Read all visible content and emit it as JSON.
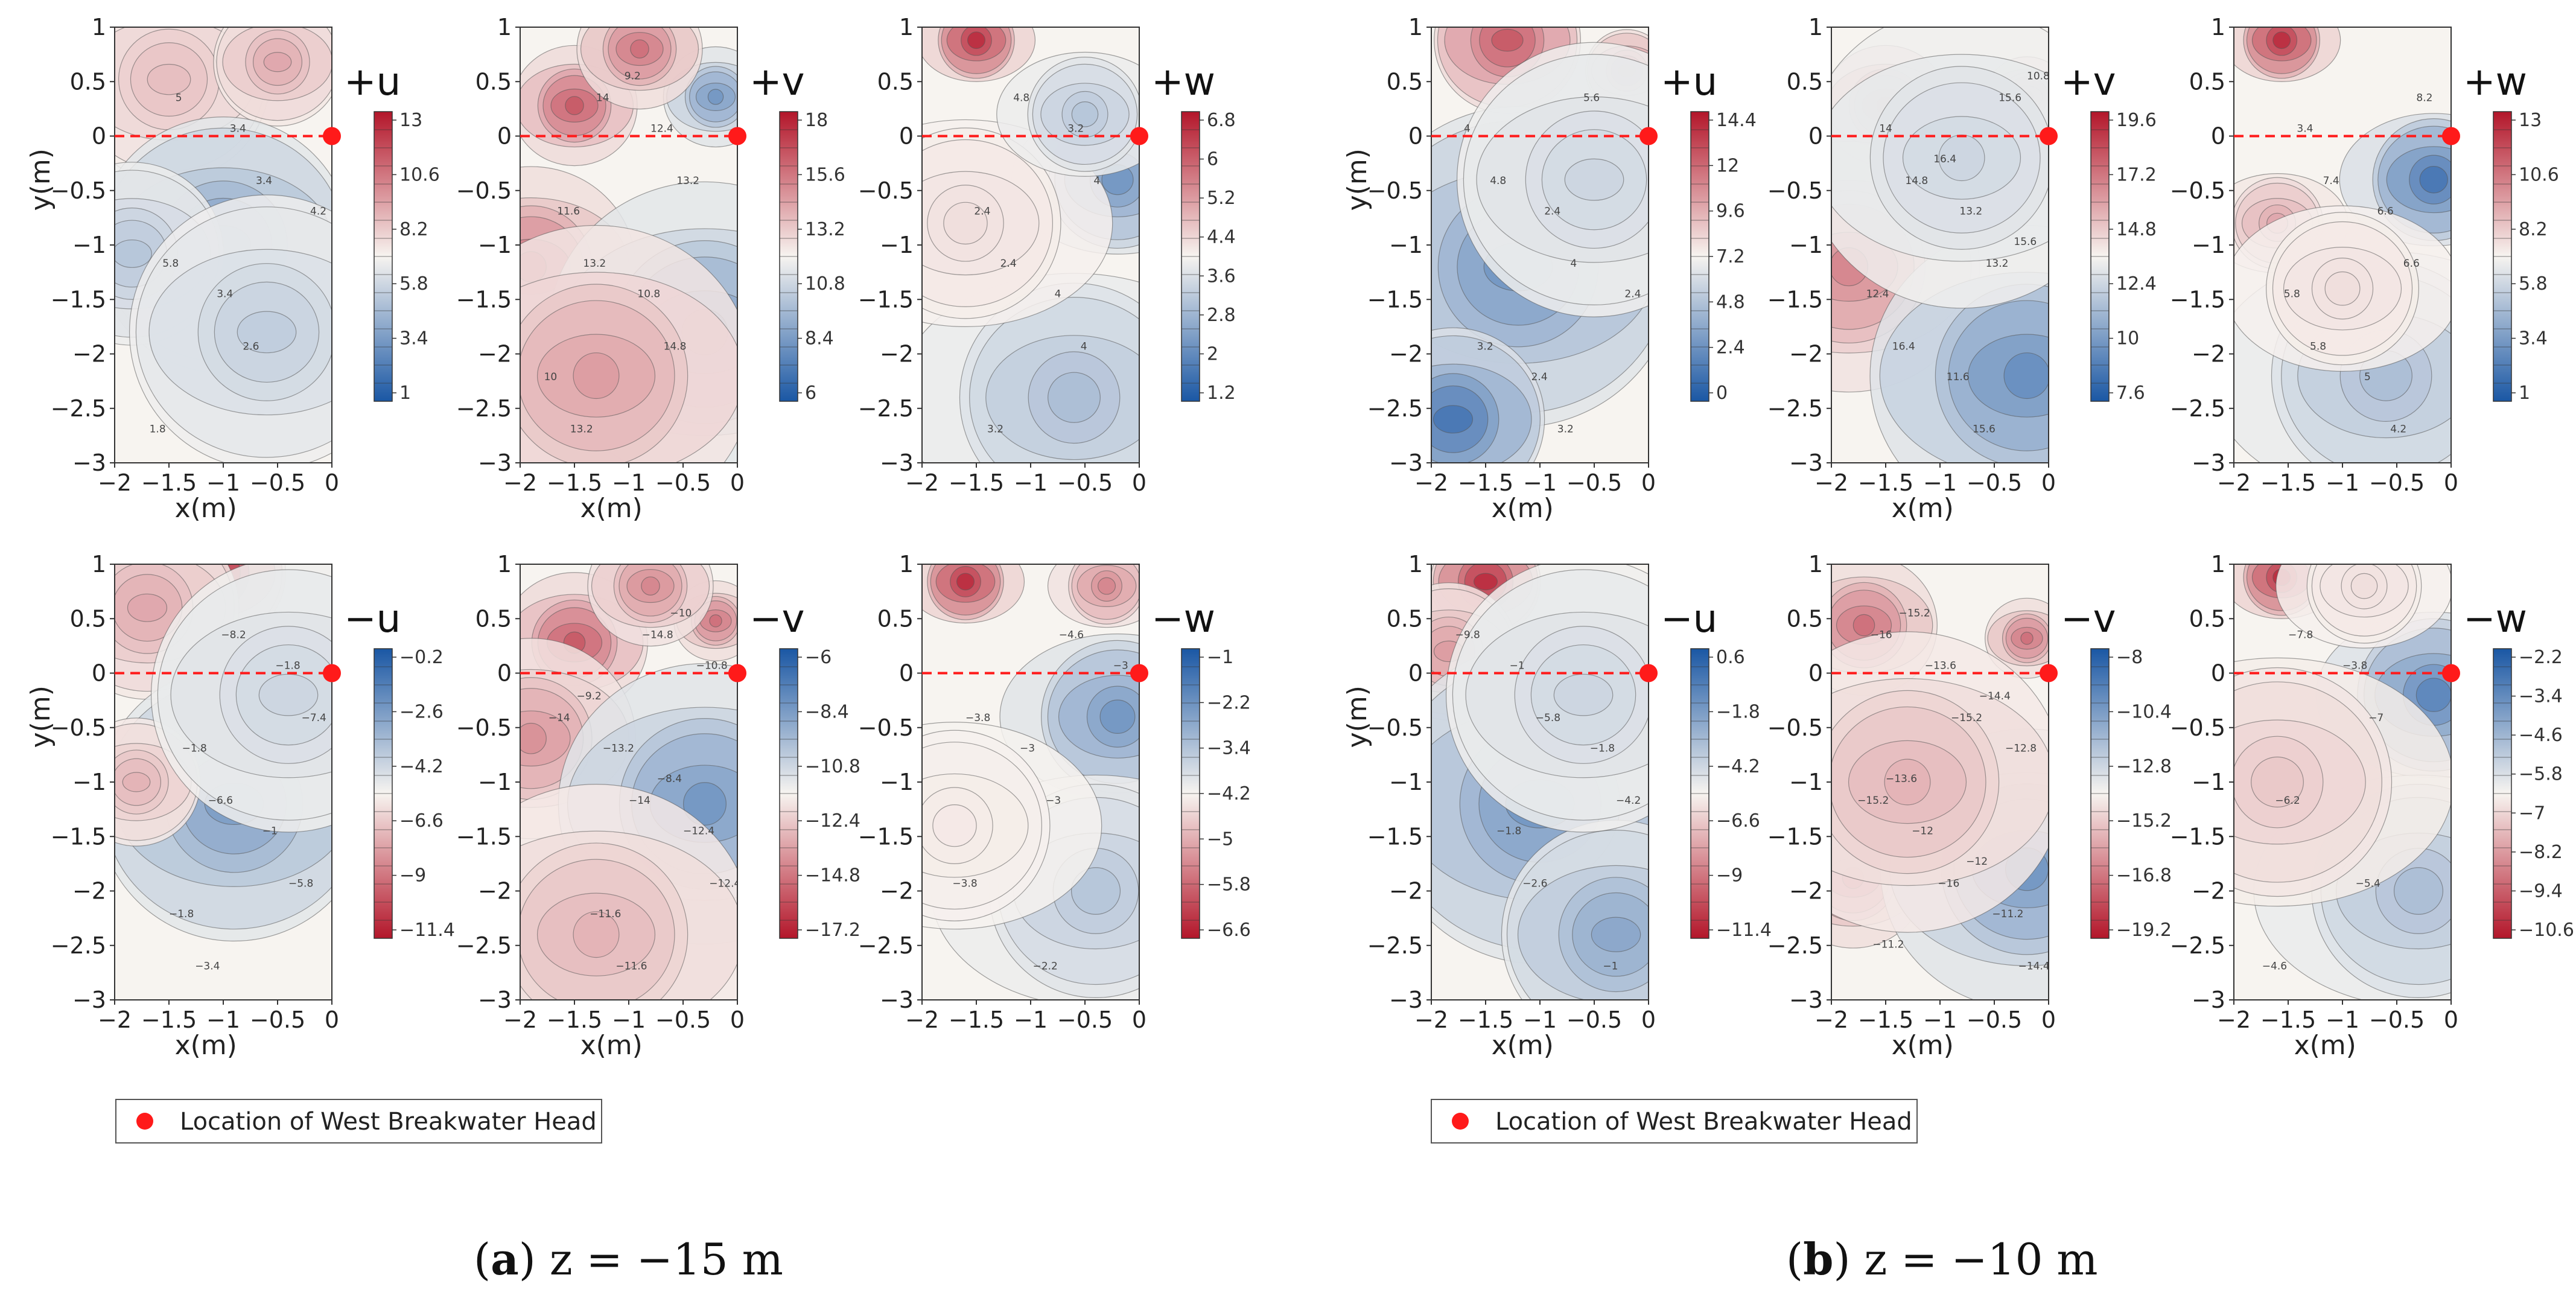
{
  "figure": {
    "legend_label": "Location of West Breakwater Head",
    "marker_color": "#ff1a1a",
    "colormap": {
      "low": "#1a57a4",
      "mid": "#f7f4f0",
      "high": "#b3162a"
    }
  },
  "groups": [
    {
      "caption_letter": "a",
      "caption_text": "z = −15 m"
    },
    {
      "caption_letter": "b",
      "caption_text": "z = −10 m"
    }
  ],
  "chart_data": [
    {
      "type": "contour",
      "group": "a",
      "title": "+u",
      "xlabel": "x(m)",
      "ylabel": "y(m)",
      "xlim": [
        -2,
        0
      ],
      "ylim": [
        -3,
        1
      ],
      "xticks": [
        "−2",
        "−1.5",
        "−1",
        "−0.5",
        "0"
      ],
      "yticks": [
        "1",
        "0.5",
        "0",
        "−0.5",
        "−1",
        "−1.5",
        "−2",
        "−2.5",
        "−3"
      ],
      "colorbar": {
        "ticks": [
          "13",
          "10.6",
          "8.2",
          "5.8",
          "3.4",
          "1"
        ],
        "min": 1,
        "max": 13,
        "reversed": false
      },
      "contour_labels": [
        "5",
        "3.4",
        "5.8",
        "2.6",
        "1.8",
        "3.4",
        "4.2",
        "3.4"
      ],
      "breakwater_line_y": 0,
      "breakwater_head": [
        0,
        0
      ]
    },
    {
      "type": "contour",
      "group": "a",
      "title": "+v",
      "xlabel": "x(m)",
      "ylabel": "",
      "xlim": [
        -2,
        0
      ],
      "ylim": [
        -3,
        1
      ],
      "xticks": [
        "−2",
        "−1.5",
        "−1",
        "−0.5",
        "0"
      ],
      "yticks": [
        "1",
        "0.5",
        "0",
        "−0.5",
        "−1",
        "−1.5",
        "−2",
        "−2.5",
        "−3"
      ],
      "colorbar": {
        "ticks": [
          "18",
          "15.6",
          "13.2",
          "10.8",
          "8.4",
          "6"
        ],
        "min": 6,
        "max": 18,
        "reversed": false
      },
      "contour_labels": [
        "14",
        "13.2",
        "13.2",
        "14.8",
        "13.2",
        "12.4",
        "11.6",
        "10.8",
        "10",
        "9.2"
      ],
      "breakwater_line_y": 0,
      "breakwater_head": [
        0,
        0
      ]
    },
    {
      "type": "contour",
      "group": "a",
      "title": "+w",
      "xlabel": "",
      "ylabel": "",
      "xlim": [
        -2,
        0
      ],
      "ylim": [
        -3,
        1
      ],
      "xticks": [
        "−2",
        "−1.5",
        "−1",
        "−0.5",
        "0"
      ],
      "yticks": [
        "1",
        "0.5",
        "0",
        "−0.5",
        "−1",
        "−1.5",
        "−2",
        "−2.5",
        "−3"
      ],
      "colorbar": {
        "ticks": [
          "6.8",
          "6",
          "5.2",
          "4.4",
          "3.6",
          "2.8",
          "2",
          "1.2"
        ],
        "min": 1.2,
        "max": 6.8,
        "reversed": false
      },
      "contour_labels": [
        "4.8",
        "4",
        "2.4",
        "4",
        "3.2",
        "3.2",
        "2.4",
        "4"
      ],
      "breakwater_line_y": 0,
      "breakwater_head": [
        0,
        0
      ]
    },
    {
      "type": "contour",
      "group": "a",
      "title": "−u",
      "xlabel": "x(m)",
      "ylabel": "y(m)",
      "xlim": [
        -2,
        0
      ],
      "ylim": [
        -3,
        1
      ],
      "xticks": [
        "−2",
        "−1.5",
        "−1",
        "−0.5",
        "0"
      ],
      "yticks": [
        "1",
        "0.5",
        "0",
        "−0.5",
        "−1",
        "−1.5",
        "−2",
        "−2.5",
        "−3"
      ],
      "colorbar": {
        "ticks": [
          "−0.2",
          "−2.6",
          "−4.2",
          "−6.6",
          "−9",
          "−11.4"
        ],
        "min": -11.4,
        "max": -0.2,
        "reversed": true
      },
      "contour_labels": [
        "−8.2",
        "−7.4",
        "−6.6",
        "−5.8",
        "−3.4",
        "−1.8",
        "−1.8",
        "−1",
        "−1.8"
      ],
      "breakwater_line_y": 0,
      "breakwater_head": [
        0,
        0
      ]
    },
    {
      "type": "contour",
      "group": "a",
      "title": "−v",
      "xlabel": "x(m)",
      "ylabel": "",
      "xlim": [
        -2,
        0
      ],
      "ylim": [
        -3,
        1
      ],
      "xticks": [
        "−2",
        "−1.5",
        "−1",
        "−0.5",
        "0"
      ],
      "yticks": [
        "1",
        "0.5",
        "0",
        "−0.5",
        "−1",
        "−1.5",
        "−2",
        "−2.5",
        "−3"
      ],
      "colorbar": {
        "ticks": [
          "−6",
          "−8.4",
          "−10.8",
          "−12.4",
          "−14.8",
          "−17.2"
        ],
        "min": -17.2,
        "max": -6,
        "reversed": true
      },
      "contour_labels": [
        "−14.8",
        "−14",
        "−14",
        "−12.4",
        "−11.6",
        "−10.8",
        "−13.2",
        "−12.4",
        "−11.6",
        "−10",
        "−9.2",
        "−8.4"
      ],
      "breakwater_line_y": 0,
      "breakwater_head": [
        0,
        0
      ]
    },
    {
      "type": "contour",
      "group": "a",
      "title": "−w",
      "xlabel": "",
      "ylabel": "",
      "xlim": [
        -2,
        0
      ],
      "ylim": [
        -3,
        1
      ],
      "xticks": [
        "−2",
        "−1.5",
        "−1",
        "−0.5",
        "0"
      ],
      "yticks": [
        "1",
        "0.5",
        "0",
        "−0.5",
        "−1",
        "−1.5",
        "−2",
        "−2.5",
        "−3"
      ],
      "colorbar": {
        "ticks": [
          "−1",
          "−2.2",
          "−3.4",
          "−4.2",
          "−5",
          "−5.8",
          "−6.6"
        ],
        "min": -6.6,
        "max": -1,
        "reversed": true
      },
      "contour_labels": [
        "−4.6",
        "−3.8",
        "−3",
        "−3.8",
        "−2.2",
        "−3",
        "−3"
      ],
      "breakwater_line_y": 0,
      "breakwater_head": [
        0,
        0
      ]
    },
    {
      "type": "contour",
      "group": "b",
      "title": "+u",
      "xlabel": "x(m)",
      "ylabel": "y(m)",
      "xlim": [
        -2,
        0
      ],
      "ylim": [
        -3,
        1
      ],
      "xticks": [
        "−2",
        "−1.5",
        "−1",
        "−0.5",
        "0"
      ],
      "yticks": [
        "1",
        "0.5",
        "0",
        "−0.5",
        "−1",
        "−1.5",
        "−2",
        "−2.5",
        "−3"
      ],
      "colorbar": {
        "ticks": [
          "14.4",
          "12",
          "9.6",
          "7.2",
          "4.8",
          "2.4",
          "0"
        ],
        "min": 0,
        "max": 14.4,
        "reversed": false
      },
      "contour_labels": [
        "5.6",
        "4.8",
        "4",
        "3.2",
        "3.2",
        "4",
        "2.4",
        "2.4",
        "2.4"
      ],
      "breakwater_line_y": 0,
      "breakwater_head": [
        0,
        0
      ]
    },
    {
      "type": "contour",
      "group": "b",
      "title": "+v",
      "xlabel": "x(m)",
      "ylabel": "",
      "xlim": [
        -2,
        0
      ],
      "ylim": [
        -3,
        1
      ],
      "xticks": [
        "−2",
        "−1.5",
        "−1",
        "−0.5",
        "0"
      ],
      "yticks": [
        "1",
        "0.5",
        "0",
        "−0.5",
        "−1",
        "−1.5",
        "−2",
        "−2.5",
        "−3"
      ],
      "colorbar": {
        "ticks": [
          "19.6",
          "17.2",
          "14.8",
          "12.4",
          "10",
          "7.6"
        ],
        "min": 7.6,
        "max": 19.6,
        "reversed": false
      },
      "contour_labels": [
        "15.6",
        "14.8",
        "13.2",
        "16.4",
        "15.6",
        "14",
        "13.2",
        "12.4",
        "11.6",
        "10.8",
        "16.4",
        "15.6"
      ],
      "breakwater_line_y": 0,
      "breakwater_head": [
        0,
        0
      ]
    },
    {
      "type": "contour",
      "group": "b",
      "title": "+w",
      "xlabel": "",
      "ylabel": "",
      "xlim": [
        -2,
        0
      ],
      "ylim": [
        -3,
        1
      ],
      "xticks": [
        "−2",
        "−1.5",
        "−1",
        "−0.5",
        "0"
      ],
      "yticks": [
        "1",
        "0.5",
        "0",
        "−0.5",
        "−1",
        "−1.5",
        "−2",
        "−2.5",
        "−3"
      ],
      "colorbar": {
        "ticks": [
          "13",
          "10.6",
          "8.2",
          "5.8",
          "3.4",
          "1"
        ],
        "min": 1,
        "max": 13,
        "reversed": false
      },
      "contour_labels": [
        "8.2",
        "7.4",
        "6.6",
        "5.8",
        "4.2",
        "3.4",
        "6.6",
        "5.8",
        "5"
      ],
      "breakwater_line_y": 0,
      "breakwater_head": [
        0,
        0
      ]
    },
    {
      "type": "contour",
      "group": "b",
      "title": "−u",
      "xlabel": "x(m)",
      "ylabel": "y(m)",
      "xlim": [
        -2,
        0
      ],
      "ylim": [
        -3,
        1
      ],
      "xticks": [
        "−2",
        "−1.5",
        "−1",
        "−0.5",
        "0"
      ],
      "yticks": [
        "1",
        "0.5",
        "0",
        "−0.5",
        "−1",
        "−1.5",
        "−2",
        "−2.5",
        "−3"
      ],
      "colorbar": {
        "ticks": [
          "0.6",
          "−1.8",
          "−4.2",
          "−6.6",
          "−9",
          "−11.4"
        ],
        "min": -11.4,
        "max": 0.6,
        "reversed": true
      },
      "contour_labels": [
        "−9.8",
        "−5.8",
        "−4.2",
        "−2.6",
        "−1",
        "−1",
        "−1.8",
        "−1.8"
      ],
      "breakwater_line_y": 0,
      "breakwater_head": [
        0,
        0
      ]
    },
    {
      "type": "contour",
      "group": "b",
      "title": "−v",
      "xlabel": "x(m)",
      "ylabel": "",
      "xlim": [
        -2,
        0
      ],
      "ylim": [
        -3,
        1
      ],
      "xticks": [
        "−2",
        "−1.5",
        "−1",
        "−0.5",
        "0"
      ],
      "yticks": [
        "1",
        "0.5",
        "0",
        "−0.5",
        "−1",
        "−1.5",
        "−2",
        "−2.5",
        "−3"
      ],
      "colorbar": {
        "ticks": [
          "−8",
          "−10.4",
          "−12.8",
          "−15.2",
          "−16.8",
          "−19.2"
        ],
        "min": -19.2,
        "max": -8,
        "reversed": true
      },
      "contour_labels": [
        "−16",
        "−15.2",
        "−15.2",
        "−16",
        "−14.4",
        "−13.6",
        "−12.8",
        "−12",
        "−11.2",
        "−15.2",
        "−14.4",
        "−13.6",
        "−12",
        "−11.2"
      ],
      "breakwater_line_y": 0,
      "breakwater_head": [
        0,
        0
      ]
    },
    {
      "type": "contour",
      "group": "b",
      "title": "−w",
      "xlabel": "x(m)",
      "ylabel": "",
      "xlim": [
        -2,
        0
      ],
      "ylim": [
        -3,
        1
      ],
      "xticks": [
        "−2",
        "−1.5",
        "−1",
        "−0.5",
        "0"
      ],
      "yticks": [
        "1",
        "0.5",
        "0",
        "−0.5",
        "−1",
        "−1.5",
        "−2",
        "−2.5",
        "−3"
      ],
      "colorbar": {
        "ticks": [
          "−2.2",
          "−3.4",
          "−4.6",
          "−5.8",
          "−7",
          "−8.2",
          "−9.4",
          "−10.6"
        ],
        "min": -10.6,
        "max": -2.2,
        "reversed": true
      },
      "contour_labels": [
        "−7.8",
        "−7",
        "−6.2",
        "−5.4",
        "−4.6",
        "−3.8"
      ],
      "breakwater_line_y": 0,
      "breakwater_head": [
        0,
        0
      ]
    }
  ]
}
